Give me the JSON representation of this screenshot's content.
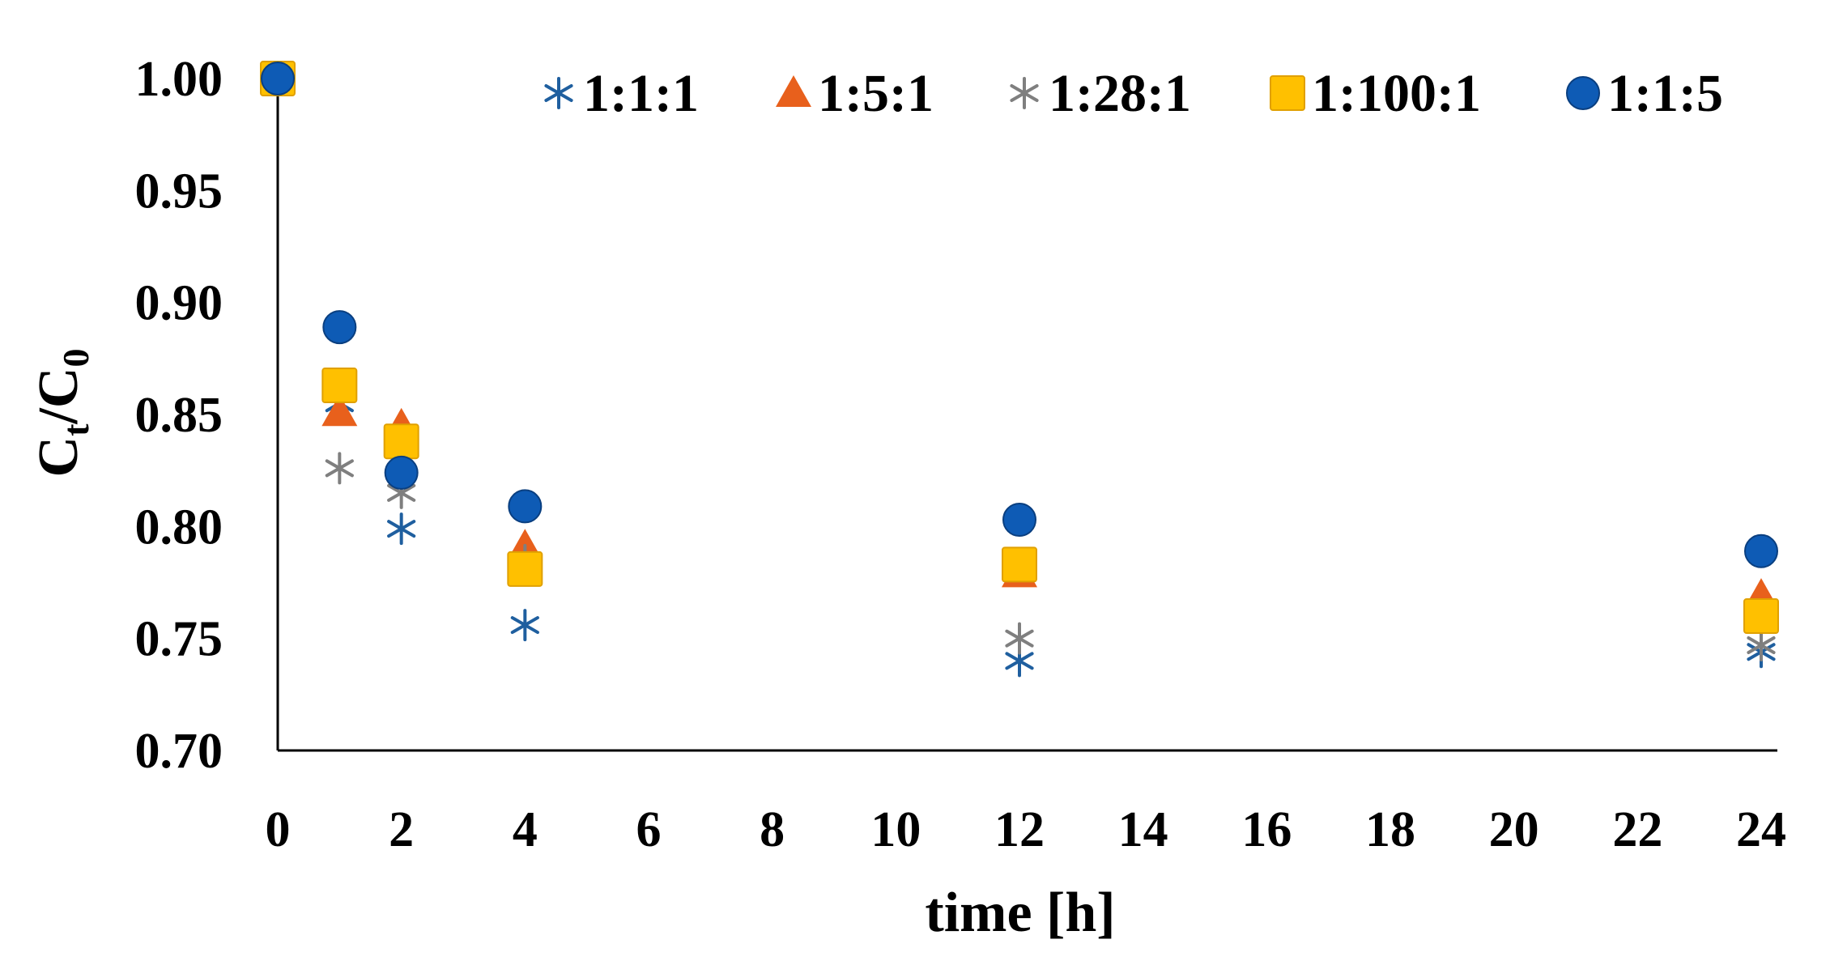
{
  "chart_data": {
    "type": "scatter",
    "title": "",
    "xlabel": "time [h]",
    "ylabel": "Ct/C0",
    "ylabel_parts": {
      "c1": "C",
      "sub1": "t",
      "slash": "/",
      "c2": "C",
      "sub2": "0"
    },
    "xlim": [
      0,
      24
    ],
    "ylim": [
      0.7,
      1.0
    ],
    "x_ticks": [
      "0",
      "2",
      "4",
      "6",
      "8",
      "10",
      "12",
      "14",
      "16",
      "18",
      "20",
      "22",
      "24"
    ],
    "y_ticks": [
      "0.70",
      "0.75",
      "0.80",
      "0.85",
      "0.90",
      "0.95",
      "1.00"
    ],
    "grid": false,
    "legend_position": "top",
    "series": [
      {
        "name": "1:1:1",
        "marker": "asterisk",
        "color": "#1f5f9f",
        "x": [
          0,
          1,
          2,
          4,
          12,
          24
        ],
        "y": [
          1.0,
          0.855,
          0.799,
          0.756,
          0.74,
          0.744
        ]
      },
      {
        "name": "1:5:1",
        "marker": "triangle",
        "color": "#e8601c",
        "x": [
          0,
          1,
          2,
          4,
          12,
          24
        ],
        "y": [
          1.0,
          0.851,
          0.845,
          0.791,
          0.779,
          0.769
        ]
      },
      {
        "name": "1:28:1",
        "marker": "asterisk",
        "color": "#7f7f7f",
        "x": [
          0,
          1,
          2,
          4,
          12,
          24
        ],
        "y": [
          1.0,
          0.826,
          0.815,
          0.785,
          0.75,
          0.747
        ]
      },
      {
        "name": "1:100:1",
        "marker": "square",
        "color": "#ffc000",
        "x": [
          0,
          1,
          2,
          4,
          12,
          24
        ],
        "y": [
          1.0,
          0.863,
          0.838,
          0.781,
          0.783,
          0.76
        ]
      },
      {
        "name": "1:1:5",
        "marker": "circle",
        "color": "#0e5bb5",
        "x": [
          0,
          1,
          2,
          4,
          12,
          24
        ],
        "y": [
          1.0,
          0.889,
          0.824,
          0.809,
          0.803,
          0.789
        ]
      }
    ]
  }
}
